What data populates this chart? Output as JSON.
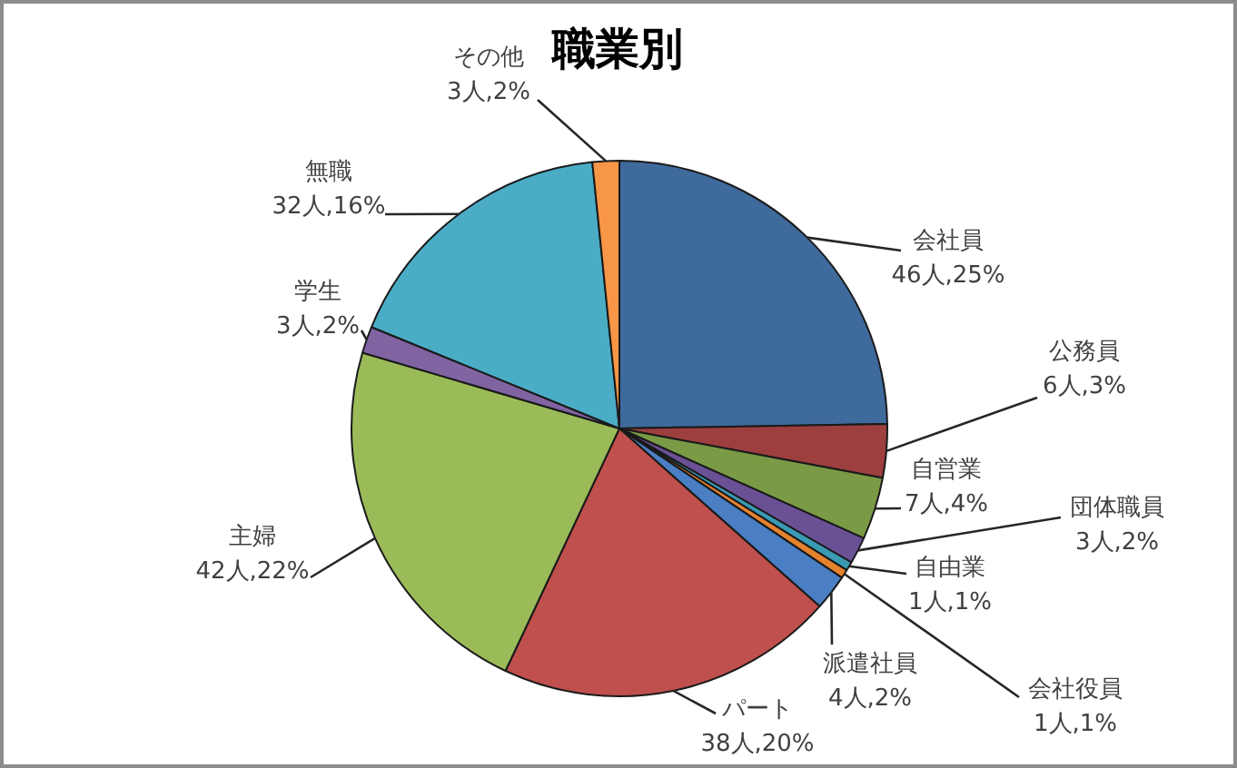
{
  "chart_data": {
    "type": "pie",
    "title": "職業別",
    "categories": [
      "会社員",
      "公務員",
      "自営業",
      "団体職員",
      "自由業",
      "会社役員",
      "派遣社員",
      "パート",
      "主婦",
      "学生",
      "無職",
      "その他"
    ],
    "values": [
      46,
      6,
      7,
      3,
      1,
      1,
      4,
      38,
      42,
      3,
      32,
      3
    ],
    "colors": [
      "#3f6a9c",
      "#9c3f3e",
      "#7a9a46",
      "#6a5196",
      "#3a9ab4",
      "#e5822e",
      "#4a7fc4",
      "#c0504d",
      "#9bbb59",
      "#8064a2",
      "#4bacc6",
      "#f79646"
    ],
    "value_labels": [
      "46人,25%",
      "6人,3%",
      "7人,4%",
      "3人,2%",
      "1人,1%",
      "1人,1%",
      "4人,2%",
      "38人,20%",
      "42人,22%",
      "3人,2%",
      "32人,16%",
      "3人,2%"
    ],
    "legend": false
  }
}
